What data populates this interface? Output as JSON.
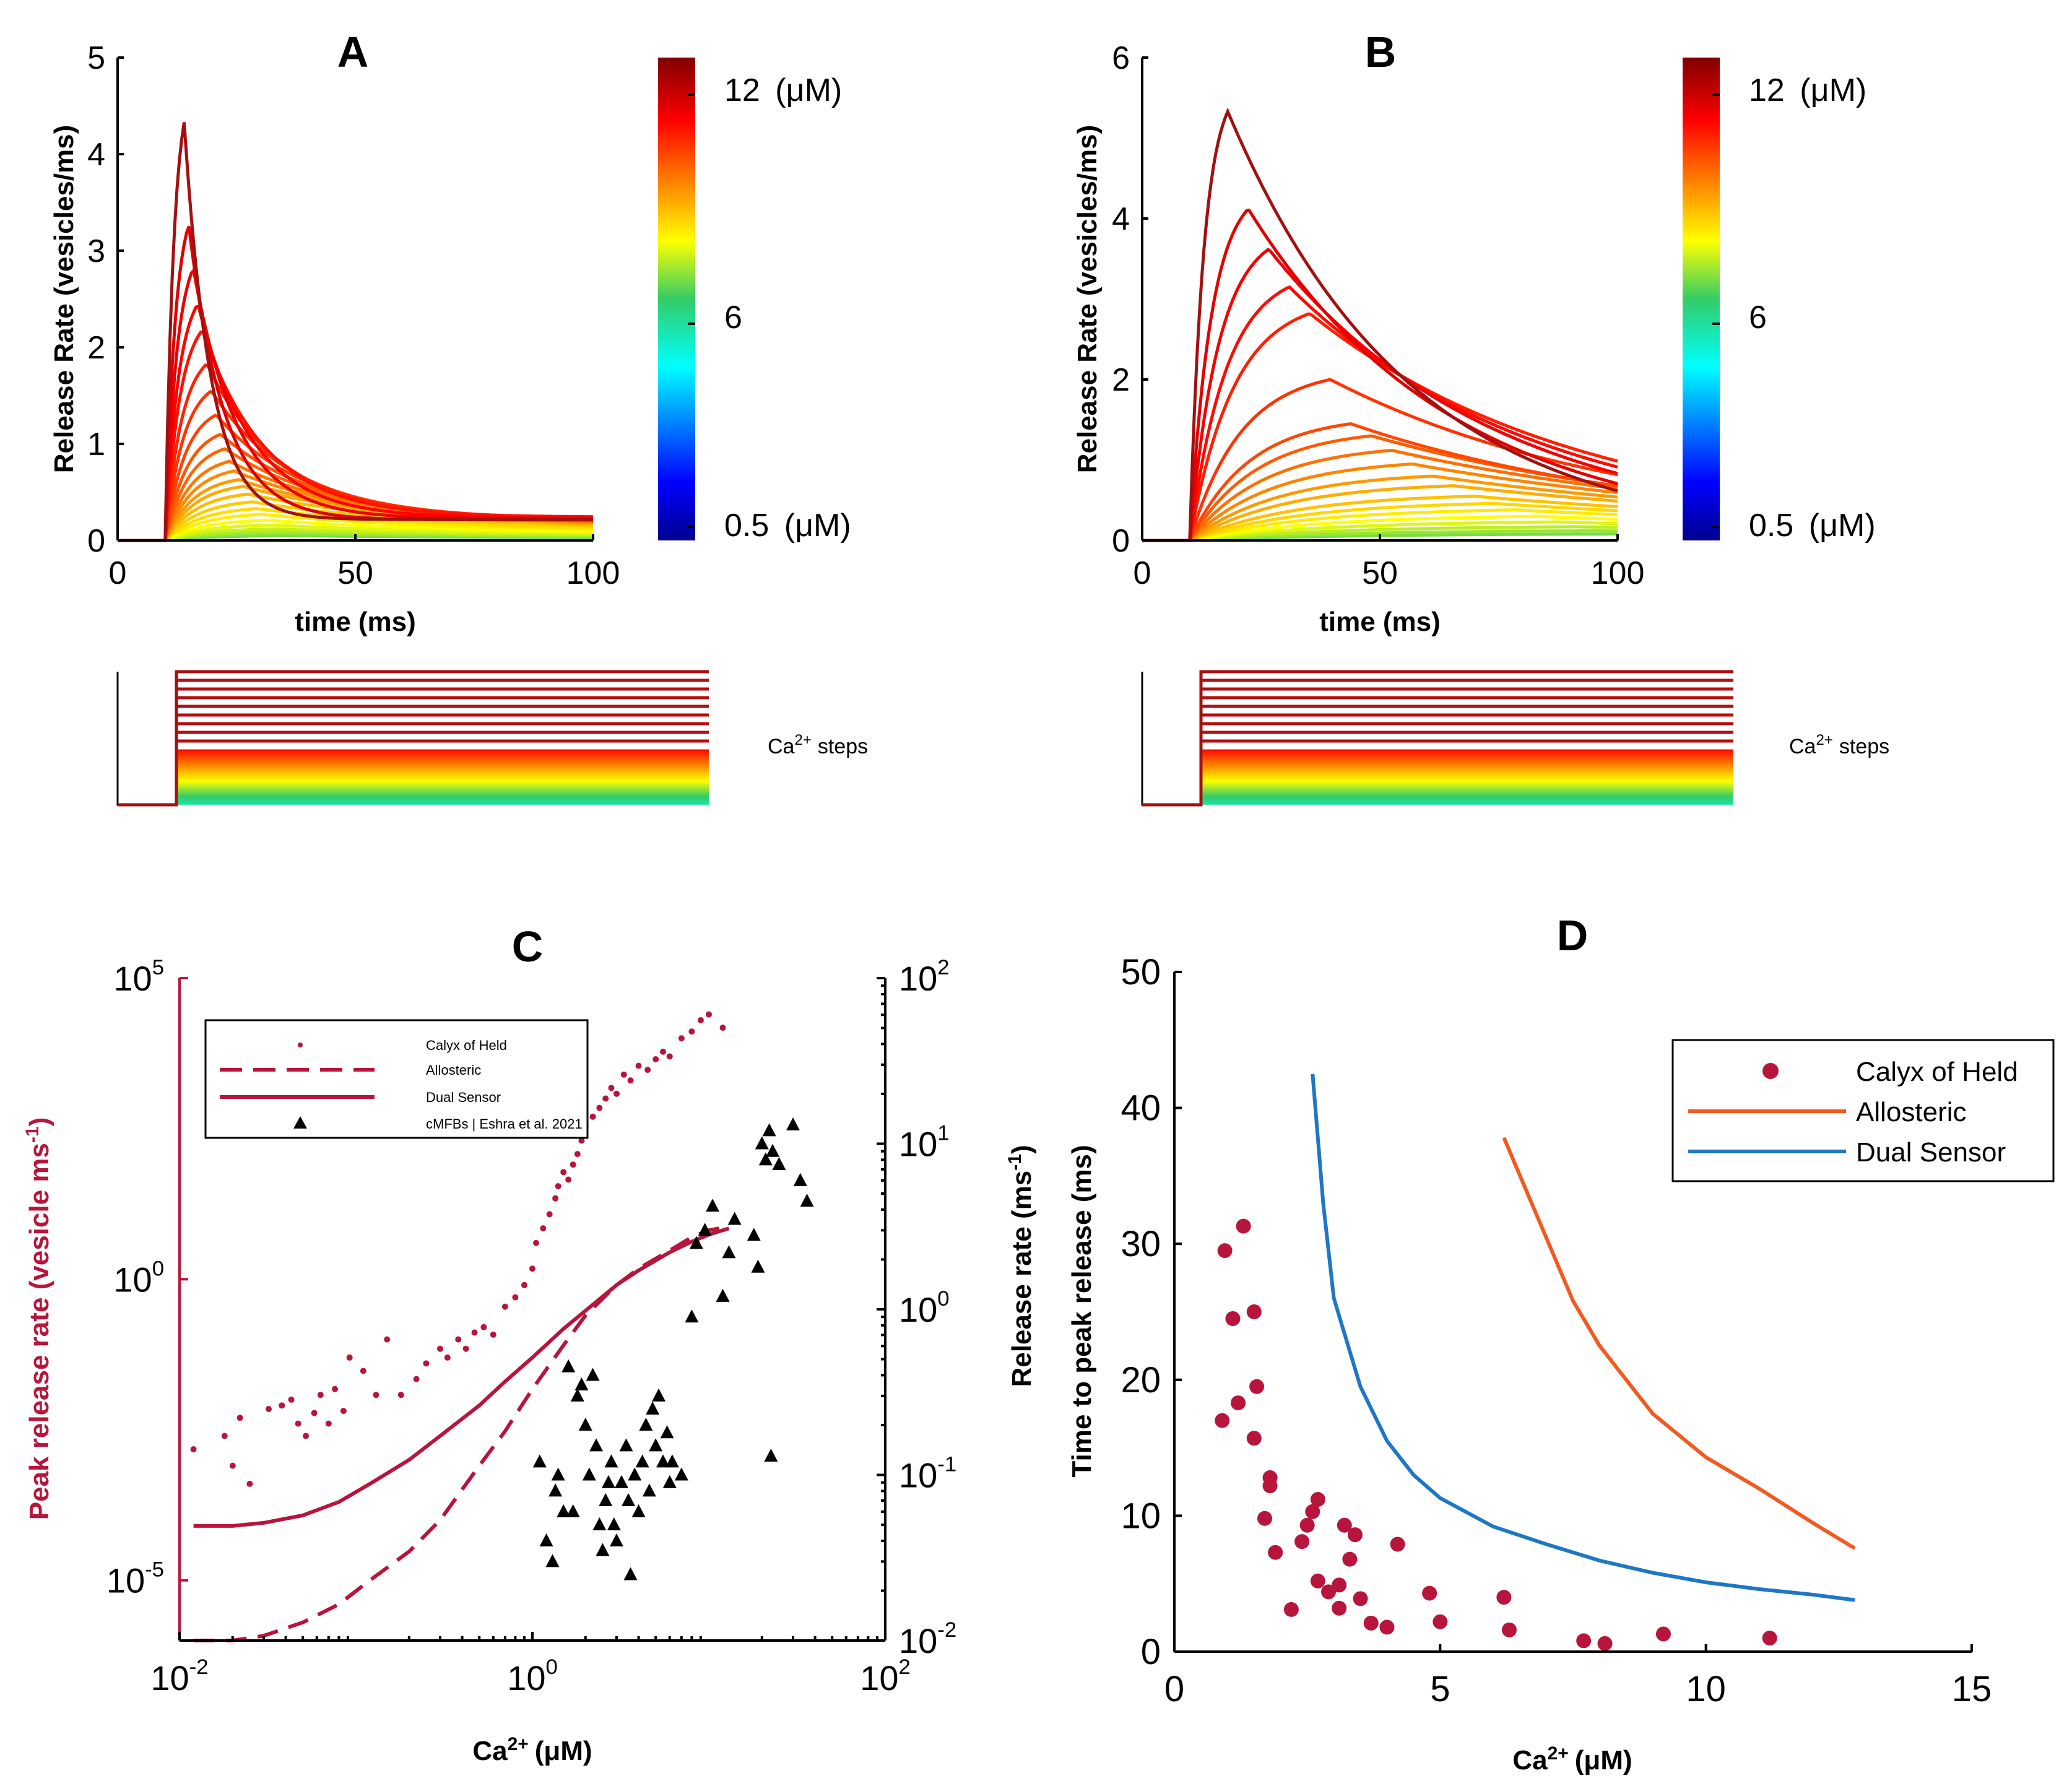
{
  "chart_data": [
    {
      "panel": "A",
      "type": "line",
      "title": "A",
      "xlabel": "time (ms)",
      "ylabel": "Release Rate (vesicles/ms)",
      "xlim": [
        0,
        100
      ],
      "ylim": [
        0,
        5
      ],
      "xticks": [
        "0",
        "50",
        "100"
      ],
      "yticks": [
        "0",
        "1",
        "2",
        "3",
        "4",
        "5"
      ],
      "colorbar": {
        "top": "12",
        "mid": "6",
        "bottom": "0.5",
        "unit": "(μM)"
      },
      "peaks": [
        4.33,
        3.27,
        2.82,
        2.45,
        2.18,
        1.83,
        1.55,
        1.3,
        1.1,
        0.95,
        0.82,
        0.72,
        0.63,
        0.56,
        0.48,
        0.4,
        0.33,
        0.27,
        0.21,
        0.16,
        0.12,
        0.09,
        0.07,
        0.05
      ],
      "steps_label": "Ca2+ steps"
    },
    {
      "panel": "B",
      "type": "line",
      "title": "B",
      "xlabel": "time (ms)",
      "ylabel": "Release Rate (vesicles/ms)",
      "xlim": [
        0,
        100
      ],
      "ylim": [
        0,
        6
      ],
      "xticks": [
        "0",
        "50",
        "100"
      ],
      "yticks": [
        "0",
        "2",
        "4",
        "6"
      ],
      "colorbar": {
        "top": "12",
        "mid": "6",
        "bottom": "0.5",
        "unit": "(μM)"
      },
      "peaks": [
        5.33,
        4.12,
        3.62,
        3.15,
        2.82,
        2.0,
        1.45,
        1.3,
        1.12,
        0.95,
        0.8,
        0.68,
        0.55,
        0.46,
        0.38,
        0.3,
        0.23,
        0.17,
        0.12,
        0.08
      ],
      "steps_label": "Ca2+ steps"
    },
    {
      "panel": "C",
      "type": "scatter",
      "title": "C",
      "xlabel": "Ca2+ (μM)",
      "ylabel_left": "Peak release rate (vesicle ms-1)",
      "ylabel_right": "Release rate (ms-1)",
      "xscale": "log",
      "xlim": [
        0.01,
        100
      ],
      "ylim_left": [
        1e-06,
        100000
      ],
      "ylim_right": [
        0.01,
        100
      ],
      "xticks": [
        "10-2",
        "100",
        "102"
      ],
      "yticks_left": [
        "10-5",
        "100",
        "105"
      ],
      "yticks_right": [
        "10-2",
        "10-1",
        "100",
        "101",
        "102"
      ],
      "legend": [
        "Calyx of Held",
        "Allosteric",
        "Dual Sensor",
        "cMFBs | Eshra et al. 2021"
      ],
      "calyx_of_held": [
        [
          0.012,
          0.0015
        ],
        [
          0.018,
          0.0025
        ],
        [
          0.02,
          0.0008
        ],
        [
          0.022,
          0.005
        ],
        [
          0.025,
          0.0004
        ],
        [
          0.032,
          0.007
        ],
        [
          0.038,
          0.008
        ],
        [
          0.043,
          0.01
        ],
        [
          0.047,
          0.004
        ],
        [
          0.052,
          0.0025
        ],
        [
          0.058,
          0.006
        ],
        [
          0.063,
          0.012
        ],
        [
          0.07,
          0.004
        ],
        [
          0.076,
          0.015
        ],
        [
          0.085,
          0.0065
        ],
        [
          0.092,
          0.05
        ],
        [
          0.11,
          0.03
        ],
        [
          0.13,
          0.012
        ],
        [
          0.15,
          0.1
        ],
        [
          0.18,
          0.012
        ],
        [
          0.22,
          0.022
        ],
        [
          0.25,
          0.04
        ],
        [
          0.3,
          0.07
        ],
        [
          0.33,
          0.05
        ],
        [
          0.38,
          0.1
        ],
        [
          0.42,
          0.07
        ],
        [
          0.47,
          0.13
        ],
        [
          0.53,
          0.16
        ],
        [
          0.6,
          0.12
        ],
        [
          0.7,
          0.35
        ],
        [
          0.8,
          0.5
        ],
        [
          0.9,
          0.8
        ],
        [
          1.0,
          1.5
        ],
        [
          1.05,
          4.0
        ],
        [
          1.15,
          7.0
        ],
        [
          1.25,
          12.0
        ],
        [
          1.35,
          22.0
        ],
        [
          1.4,
          35.0
        ],
        [
          1.5,
          60.0
        ],
        [
          1.6,
          45.0
        ],
        [
          1.7,
          80.0
        ],
        [
          1.8,
          120.0
        ],
        [
          1.9,
          200.0
        ],
        [
          2.0,
          350.0
        ],
        [
          2.2,
          500.0
        ],
        [
          2.4,
          700.0
        ],
        [
          2.6,
          1000.0
        ],
        [
          2.8,
          1500.0
        ],
        [
          3.0,
          1200.0
        ],
        [
          3.3,
          2500.0
        ],
        [
          3.6,
          2000.0
        ],
        [
          4.0,
          3500.0
        ],
        [
          4.5,
          3000.0
        ],
        [
          5.0,
          4500.0
        ],
        [
          5.5,
          6000.0
        ],
        [
          6.0,
          5000.0
        ],
        [
          7.0,
          10000.0
        ],
        [
          8.0,
          13000.0
        ],
        [
          9.0,
          20000.0
        ],
        [
          10.0,
          25000.0
        ],
        [
          12.0,
          15000.0
        ]
      ],
      "allosteric": [
        [
          0.012,
          1e-06
        ],
        [
          0.02,
          1e-06
        ],
        [
          0.03,
          1.2e-06
        ],
        [
          0.05,
          2e-06
        ],
        [
          0.08,
          4e-06
        ],
        [
          0.12,
          1e-05
        ],
        [
          0.2,
          3e-05
        ],
        [
          0.3,
          0.0001
        ],
        [
          0.5,
          0.0008
        ],
        [
          0.7,
          0.003
        ],
        [
          1.0,
          0.015
        ],
        [
          1.5,
          0.08
        ],
        [
          2.0,
          0.25
        ],
        [
          3.0,
          0.8
        ],
        [
          4.0,
          1.5
        ],
        [
          6.0,
          3.0
        ],
        [
          8.0,
          5.0
        ],
        [
          10.0,
          6.5
        ],
        [
          13.0,
          7.5
        ]
      ],
      "dual_sensor": [
        [
          0.012,
          8e-05
        ],
        [
          0.02,
          8e-05
        ],
        [
          0.03,
          9e-05
        ],
        [
          0.05,
          0.00012
        ],
        [
          0.08,
          0.0002
        ],
        [
          0.12,
          0.0004
        ],
        [
          0.2,
          0.001
        ],
        [
          0.3,
          0.0025
        ],
        [
          0.5,
          0.008
        ],
        [
          0.7,
          0.02
        ],
        [
          1.0,
          0.05
        ],
        [
          1.5,
          0.15
        ],
        [
          2.0,
          0.3
        ],
        [
          3.0,
          0.8
        ],
        [
          4.0,
          1.4
        ],
        [
          6.0,
          2.8
        ],
        [
          8.0,
          4.2
        ],
        [
          10.0,
          5.5
        ],
        [
          13.0,
          7.0
        ]
      ],
      "cmfbs": [
        [
          1.1,
          0.12
        ],
        [
          1.2,
          0.04
        ],
        [
          1.3,
          0.03
        ],
        [
          1.35,
          0.08
        ],
        [
          1.4,
          0.1
        ],
        [
          1.5,
          0.06
        ],
        [
          1.6,
          0.45
        ],
        [
          1.7,
          0.06
        ],
        [
          1.8,
          0.3
        ],
        [
          1.9,
          0.35
        ],
        [
          2.0,
          0.2
        ],
        [
          2.1,
          0.1
        ],
        [
          2.2,
          0.4
        ],
        [
          2.3,
          0.15
        ],
        [
          2.4,
          0.05
        ],
        [
          2.5,
          0.035
        ],
        [
          2.6,
          0.07
        ],
        [
          2.7,
          0.09
        ],
        [
          2.8,
          0.12
        ],
        [
          2.9,
          0.05
        ],
        [
          3.0,
          0.04
        ],
        [
          3.2,
          0.09
        ],
        [
          3.4,
          0.15
        ],
        [
          3.5,
          0.07
        ],
        [
          3.6,
          0.025
        ],
        [
          3.8,
          0.1
        ],
        [
          4.0,
          0.06
        ],
        [
          4.2,
          0.12
        ],
        [
          4.4,
          0.2
        ],
        [
          4.6,
          0.08
        ],
        [
          4.8,
          0.25
        ],
        [
          5.0,
          0.15
        ],
        [
          5.2,
          0.3
        ],
        [
          5.5,
          0.12
        ],
        [
          5.8,
          0.18
        ],
        [
          6.0,
          0.09
        ],
        [
          6.2,
          0.12
        ],
        [
          7.0,
          0.1
        ],
        [
          8.0,
          0.9
        ],
        [
          8.5,
          2.5
        ],
        [
          9.5,
          3.0
        ],
        [
          10.5,
          4.2
        ],
        [
          12.0,
          1.2
        ],
        [
          13.0,
          2.2
        ],
        [
          14.0,
          3.5
        ],
        [
          18.0,
          2.8
        ],
        [
          19.0,
          1.8
        ],
        [
          20.0,
          10.0
        ],
        [
          21.0,
          8.0
        ],
        [
          22.0,
          12.0
        ],
        [
          22.5,
          0.13
        ],
        [
          23.0,
          9.0
        ],
        [
          25.0,
          7.5
        ],
        [
          30.0,
          13.0
        ],
        [
          33.0,
          6.0
        ],
        [
          36.0,
          4.5
        ]
      ]
    },
    {
      "panel": "D",
      "type": "scatter",
      "title": "D",
      "xlabel": "Ca2+ (μM)",
      "ylabel": "Time to peak release (ms)",
      "xlim": [
        0,
        15
      ],
      "ylim": [
        0,
        50
      ],
      "xticks": [
        "0",
        "5",
        "10",
        "15"
      ],
      "yticks": [
        "0",
        "10",
        "20",
        "30",
        "40",
        "50"
      ],
      "legend": [
        "Calyx of Held",
        "Allosteric",
        "Dual Sensor"
      ],
      "colors": {
        "calyx": "#b7153c",
        "allosteric": "#f25a1f",
        "dual": "#1f77c4"
      },
      "calyx_of_held": [
        [
          0.9,
          17.0
        ],
        [
          0.95,
          29.5
        ],
        [
          1.1,
          24.5
        ],
        [
          1.2,
          18.3
        ],
        [
          1.3,
          31.3
        ],
        [
          1.5,
          25.0
        ],
        [
          1.55,
          19.5
        ],
        [
          1.5,
          15.7
        ],
        [
          1.7,
          9.8
        ],
        [
          1.8,
          12.8
        ],
        [
          1.8,
          12.2
        ],
        [
          1.9,
          7.3
        ],
        [
          2.2,
          3.1
        ],
        [
          2.4,
          8.1
        ],
        [
          2.5,
          9.3
        ],
        [
          2.6,
          10.3
        ],
        [
          2.7,
          5.2
        ],
        [
          2.7,
          11.2
        ],
        [
          2.9,
          4.4
        ],
        [
          3.1,
          3.2
        ],
        [
          3.1,
          4.9
        ],
        [
          3.2,
          9.3
        ],
        [
          3.3,
          6.8
        ],
        [
          3.4,
          8.6
        ],
        [
          3.5,
          3.9
        ],
        [
          3.7,
          2.1
        ],
        [
          4.0,
          1.8
        ],
        [
          4.2,
          7.9
        ],
        [
          4.8,
          4.3
        ],
        [
          5.0,
          2.2
        ],
        [
          6.2,
          4.0
        ],
        [
          6.3,
          1.6
        ],
        [
          7.7,
          0.8
        ],
        [
          8.1,
          0.6
        ],
        [
          9.2,
          1.3
        ],
        [
          11.2,
          1.0
        ]
      ],
      "allosteric": [
        [
          6.2,
          37.8
        ],
        [
          7.5,
          25.8
        ],
        [
          8.0,
          22.5
        ],
        [
          9.0,
          17.5
        ],
        [
          10.0,
          14.3
        ],
        [
          11.0,
          12.0
        ],
        [
          12.0,
          9.5
        ],
        [
          12.8,
          7.6
        ]
      ],
      "dual_sensor": [
        [
          2.6,
          42.5
        ],
        [
          2.8,
          33.0
        ],
        [
          3.0,
          26.0
        ],
        [
          3.5,
          19.5
        ],
        [
          4.0,
          15.5
        ],
        [
          4.5,
          13.0
        ],
        [
          5.0,
          11.3
        ],
        [
          6.0,
          9.2
        ],
        [
          7.0,
          7.9
        ],
        [
          8.0,
          6.7
        ],
        [
          9.0,
          5.8
        ],
        [
          10.0,
          5.1
        ],
        [
          11.0,
          4.6
        ],
        [
          12.0,
          4.2
        ],
        [
          12.8,
          3.8
        ]
      ]
    }
  ],
  "labels": {
    "a_title": "A",
    "b_title": "B",
    "c_title": "C",
    "d_title": "D",
    "time_ms": "time (ms)",
    "release_rate_vesicles": "Release Rate (vesicles/ms)",
    "cb_top": "12",
    "cb_mid": "6",
    "cb_bot": "0.5",
    "cb_unit": "(μM)",
    "steps_ca": "Ca",
    "steps_sup": "2+",
    "steps_word": "steps",
    "ca": "Ca",
    "ca_sup": "2+",
    "ca_unit": "(μM)",
    "c_left_label": "Peak release rate (vesicle ms",
    "c_left_sup": "-1",
    "c_left_close": ")",
    "c_right_label": "Release rate (ms",
    "c_right_sup": "-1",
    "c_right_close": ")",
    "d_ylabel": "Time to peak release (ms)",
    "leg_calyx": "Calyx of Held",
    "leg_allosteric": "Allosteric",
    "leg_dual": "Dual Sensor",
    "leg_cmfbs": "cMFBs | Eshra et al. 2021"
  },
  "colors": {
    "dark_red": "#a31010",
    "red": "#e3140a",
    "crimson": "#b7153c",
    "orange": "#f25a1f",
    "blue": "#1f77c4"
  }
}
